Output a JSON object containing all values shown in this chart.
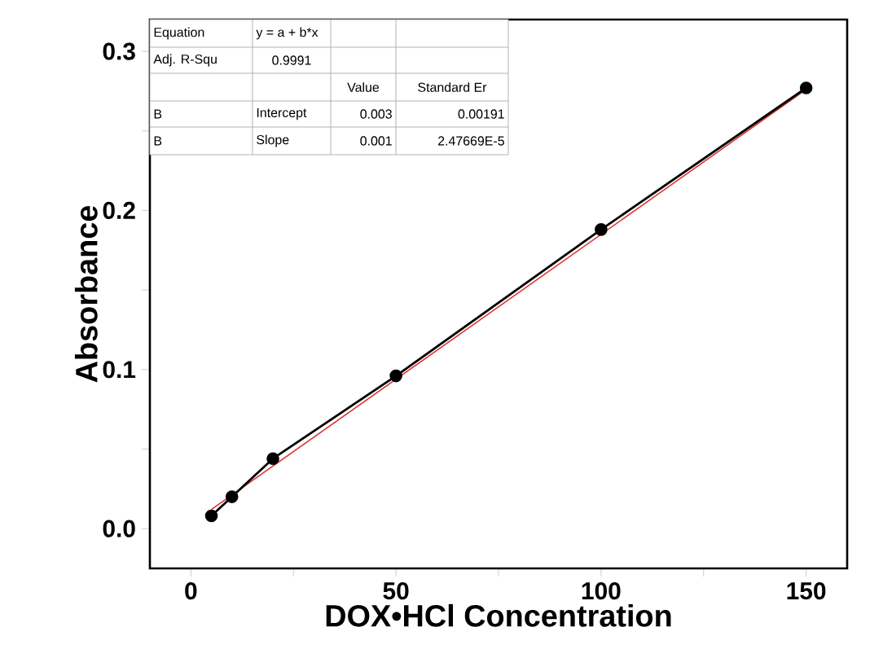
{
  "chart_data": {
    "type": "line",
    "xlabel": "DOX•HCl Concentration",
    "ylabel": "Absorbance",
    "xlim": [
      -10,
      160
    ],
    "ylim": [
      -0.025,
      0.32
    ],
    "xticks": [
      0,
      {
        "value": 25,
        "label": null
      },
      50,
      {
        "value": 75,
        "label": null
      },
      100,
      {
        "value": 125,
        "label": null
      },
      150
    ],
    "yticks": [
      {
        "value": 0,
        "label": "0.0"
      },
      {
        "value": 0.05,
        "label": null
      },
      0.1,
      {
        "value": 0.15,
        "label": null
      },
      0.2,
      {
        "value": 0.25,
        "label": null
      },
      0.3
    ],
    "grid": false,
    "series": [
      {
        "type": "line",
        "color": "#000000",
        "marker": "circle",
        "x": [
          5,
          10,
          20,
          50,
          100,
          150
        ],
        "values": [
          0.008,
          0.02,
          0.044,
          0.096,
          0.188,
          0.277
        ]
      },
      {
        "type": "line",
        "color": "#e03030",
        "marker": "none",
        "x": [
          5,
          150
        ],
        "values": [
          0.012,
          0.276
        ]
      }
    ],
    "annotations": [
      "Equation",
      "y = a + b*x",
      "Adj. R-Squ",
      "0.9991",
      "Value",
      "Standard Er",
      "B",
      "Intercept",
      "0.003",
      "0.00191",
      "B",
      "Slope",
      "0.001",
      "2.47669E-5"
    ]
  }
}
